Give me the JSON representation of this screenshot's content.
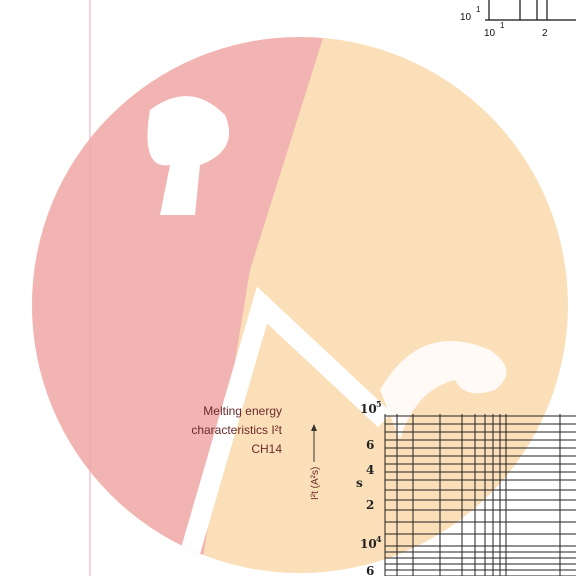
{
  "top_axis": {
    "y_base": "10",
    "y_exp": "1",
    "x_base": "10",
    "x_exp": "1",
    "x_tick": "2"
  },
  "caption": {
    "lines": [
      "Melting energy",
      "characteristics I²t",
      "CH14"
    ]
  },
  "axis_label": "I²t (A²s)",
  "y_ticks": [
    {
      "base": "10",
      "exp": "5"
    },
    {
      "base": "6"
    },
    {
      "base": "4"
    },
    {
      "base": "2"
    },
    {
      "base": "10",
      "exp": "4"
    },
    {
      "base": "6"
    }
  ],
  "unit_mark": "s"
}
